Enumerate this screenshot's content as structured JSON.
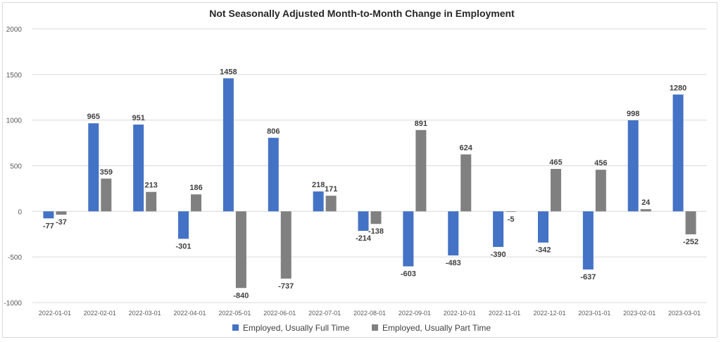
{
  "chart_data": {
    "type": "bar",
    "title": "Not Seasonally Adjusted Month-to-Month Change in Employment",
    "xlabel": "",
    "ylabel": "",
    "ylim": [
      -1000,
      2000
    ],
    "yticks": [
      -1000,
      -500,
      0,
      500,
      1000,
      1500,
      2000
    ],
    "grid": true,
    "legend_position": "bottom",
    "categories": [
      "2022-01-01",
      "2022-02-01",
      "2022-03-01",
      "2022-04-01",
      "2022-05-01",
      "2022-06-01",
      "2022-07-01",
      "2022-08-01",
      "2022-09-01",
      "2022-10-01",
      "2022-11-01",
      "2022-12-01",
      "2023-01-01",
      "2023-02-01",
      "2023-03-01"
    ],
    "series": [
      {
        "name": "Employed, Usually Full Time",
        "color": "#4472c4",
        "values": [
          -77,
          965,
          951,
          -301,
          1458,
          806,
          218,
          -214,
          -603,
          -483,
          -390,
          -342,
          -637,
          998,
          1280
        ]
      },
      {
        "name": "Employed, Usually Part Time",
        "color": "#808080",
        "values": [
          -37,
          359,
          213,
          186,
          -840,
          -737,
          171,
          -138,
          891,
          624,
          -5,
          465,
          456,
          24,
          -252
        ]
      }
    ]
  }
}
